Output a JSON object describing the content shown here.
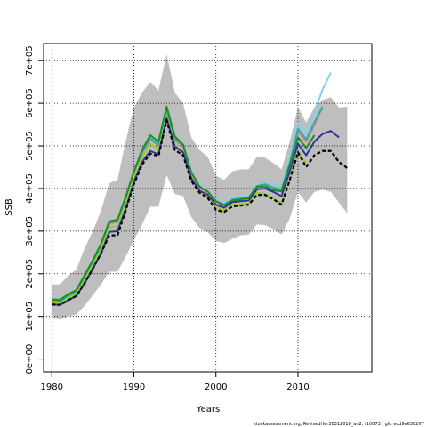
{
  "chart_data": {
    "type": "line",
    "xlabel": "Years",
    "ylabel": "SSB",
    "xlim": [
      1979,
      2019
    ],
    "ylim": [
      -30000,
      740000
    ],
    "x_ticks": [
      1980,
      1990,
      2000,
      2010
    ],
    "x_tick_labels": [
      "1980",
      "1990",
      "2000",
      "2010"
    ],
    "y_ticks": [
      0,
      100000,
      200000,
      300000,
      400000,
      500000,
      600000,
      700000
    ],
    "y_tick_labels": [
      "0e+00",
      "1e+05",
      "2e+05",
      "3e+05",
      "4e+05",
      "5e+05",
      "6e+05",
      "7e+05"
    ],
    "grid": true,
    "footer": "stockassessment.org, RevisedHer30312018_an2, r10073 , git: ecd9e6382ff7",
    "band": {
      "color": "#bebebe",
      "x": [
        1980,
        1981,
        1982,
        1983,
        1984,
        1985,
        1986,
        1987,
        1988,
        1989,
        1990,
        1991,
        1992,
        1993,
        1994,
        1995,
        1996,
        1997,
        1998,
        1999,
        2000,
        2001,
        2002,
        2003,
        2004,
        2005,
        2006,
        2007,
        2008,
        2009,
        2010,
        2011,
        2012,
        2013,
        2014,
        2015,
        2016
      ],
      "lower": [
        97000,
        92000,
        100000,
        105000,
        125000,
        150000,
        175000,
        205000,
        205000,
        240000,
        280000,
        315000,
        357000,
        357000,
        432000,
        387000,
        382000,
        333000,
        308000,
        297000,
        277000,
        272000,
        282000,
        290000,
        292000,
        316000,
        314000,
        305000,
        292000,
        330000,
        392000,
        367000,
        392000,
        397000,
        392000,
        367000,
        342000
      ],
      "upper": [
        175000,
        175000,
        195000,
        210000,
        260000,
        300000,
        348000,
        412000,
        420000,
        510000,
        590000,
        625000,
        650000,
        630000,
        715000,
        625000,
        600000,
        520000,
        490000,
        475000,
        430000,
        420000,
        440000,
        445000,
        445000,
        475000,
        472000,
        460000,
        445000,
        510000,
        590000,
        555000,
        590000,
        608000,
        614000,
        590000,
        592000
      ]
    },
    "series": [
      {
        "color": "#87ceeb",
        "x": [
          1980,
          1981,
          1982,
          1983,
          1984,
          1985,
          1986,
          1987,
          1988,
          1989,
          1990,
          1991,
          1992,
          1993,
          1994,
          1995,
          1996,
          1997,
          1998,
          1999,
          2000,
          2001,
          2002,
          2003,
          2004,
          2005,
          2006,
          2007,
          2008,
          2009,
          2010,
          2011,
          2012,
          2013,
          2014
        ],
        "values": [
          138000,
          137000,
          150000,
          160000,
          196000,
          232000,
          270000,
          322000,
          328000,
          380000,
          440000,
          488000,
          520000,
          505000,
          585000,
          518000,
          503000,
          440000,
          408000,
          395000,
          373000,
          365000,
          377000,
          380000,
          382000,
          408000,
          412000,
          410000,
          405000,
          468000,
          552000,
          530000,
          580000,
          632000,
          672000
        ]
      },
      {
        "color": "#f08080",
        "x": [
          1980,
          1981,
          1982,
          1983,
          1984,
          1985,
          1986,
          1987,
          1988,
          1989,
          1990,
          1991,
          1992,
          1993,
          1994,
          1995,
          1996,
          1997,
          1998,
          1999,
          2000,
          2001,
          2002,
          2003,
          2004,
          2005,
          2006,
          2007,
          2008,
          2009,
          2010,
          2011,
          2012,
          2013
        ],
        "values": [
          134000,
          133000,
          146000,
          156000,
          190000,
          226000,
          264000,
          316000,
          322000,
          374000,
          435000,
          482000,
          515000,
          500000,
          580000,
          512000,
          498000,
          435000,
          402000,
          390000,
          368000,
          360000,
          372000,
          375000,
          377000,
          403000,
          405000,
          400000,
          395000,
          455000,
          532000,
          510000,
          548000,
          590000
        ]
      },
      {
        "color": "#20b2aa",
        "x": [
          1980,
          1981,
          1982,
          1983,
          1984,
          1985,
          1986,
          1987,
          1988,
          1989,
          1990,
          1991,
          1992,
          1993,
          1994,
          1995,
          1996,
          1997,
          1998,
          1999,
          2000,
          2001,
          2002,
          2003,
          2004,
          2005,
          2006,
          2007,
          2008,
          2009,
          2010,
          2011,
          2012,
          2013
        ],
        "values": [
          136000,
          135000,
          148000,
          158000,
          193000,
          229000,
          267000,
          319000,
          325000,
          377000,
          438000,
          485000,
          518000,
          502000,
          584000,
          516000,
          501000,
          438000,
          405000,
          392000,
          370000,
          362000,
          374000,
          377000,
          379000,
          406000,
          410000,
          402000,
          398000,
          460000,
          540000,
          515000,
          555000,
          592000
        ]
      },
      {
        "color": "#228b22",
        "x": [
          1980,
          1981,
          1982,
          1983,
          1984,
          1985,
          1986,
          1987,
          1988,
          1989,
          1990,
          1991,
          1992,
          1993,
          1994,
          1995,
          1996,
          1997,
          1998,
          1999,
          2000,
          2001,
          2002,
          2003,
          2004,
          2005,
          2006,
          2007,
          2008,
          2009,
          2010,
          2011,
          2012
        ],
        "values": [
          140000,
          139000,
          152000,
          162000,
          197000,
          232000,
          270000,
          323000,
          327000,
          380000,
          440000,
          490000,
          525000,
          510000,
          592000,
          522000,
          503000,
          438000,
          404000,
          393000,
          370000,
          361000,
          372000,
          374000,
          378000,
          404000,
          405000,
          396000,
          393000,
          455000,
          520000,
          495000,
          525000
        ]
      },
      {
        "color": "#9acd32",
        "x": [
          1980,
          1981,
          1982,
          1983,
          1984,
          1985,
          1986,
          1987,
          1988,
          1989,
          1990,
          1991,
          1992,
          1993,
          1994,
          1995,
          1996,
          1997,
          1998,
          1999,
          2000,
          2001,
          2002,
          2003,
          2004,
          2005,
          2006,
          2007,
          2008,
          2009,
          2010,
          2011
        ],
        "values": [
          131000,
          130000,
          143000,
          153000,
          185000,
          220000,
          258000,
          308000,
          312000,
          362000,
          425000,
          472000,
          505000,
          490000,
          570000,
          500000,
          487000,
          425000,
          394000,
          380000,
          356000,
          349000,
          362000,
          364000,
          366000,
          390000,
          388000,
          378000,
          365000,
          420000,
          485000,
          460000
        ]
      },
      {
        "color": "#333399",
        "x": [
          1980,
          1981,
          1982,
          1983,
          1984,
          1985,
          1986,
          1987,
          1988,
          1989,
          1990,
          1991,
          1992,
          1993,
          1994,
          1995,
          1996,
          1997,
          1998,
          1999,
          2000,
          2001,
          2002,
          2003,
          2004,
          2005,
          2006,
          2007,
          2008,
          2009,
          2010,
          2011,
          2012,
          2013,
          2014,
          2015
        ],
        "values": [
          128000,
          127000,
          138000,
          148000,
          178000,
          212000,
          248000,
          298000,
          300000,
          352000,
          415000,
          462000,
          488000,
          480000,
          565000,
          498000,
          485000,
          424000,
          395000,
          385000,
          362000,
          355000,
          368000,
          370000,
          372000,
          398000,
          400000,
          392000,
          382000,
          440000,
          505000,
          478000,
          510000,
          528000,
          535000,
          520000
        ]
      },
      {
        "color": "#000000",
        "dashed": true,
        "x": [
          1980,
          1981,
          1982,
          1983,
          1984,
          1985,
          1986,
          1987,
          1988,
          1989,
          1990,
          1991,
          1992,
          1993,
          1994,
          1995,
          1996,
          1997,
          1998,
          1999,
          2000,
          2001,
          2002,
          2003,
          2004,
          2005,
          2006,
          2007,
          2008,
          2009,
          2010,
          2011,
          2012,
          2013,
          2014,
          2015,
          2016
        ],
        "values": [
          128000,
          127000,
          138000,
          148000,
          178000,
          212000,
          248000,
          290000,
          290000,
          348000,
          410000,
          456000,
          482000,
          476000,
          560000,
          490000,
          478000,
          418000,
          390000,
          378000,
          350000,
          345000,
          358000,
          360000,
          362000,
          385000,
          385000,
          375000,
          362000,
          420000,
          485000,
          450000,
          478000,
          488000,
          488000,
          462000,
          448000
        ]
      }
    ]
  }
}
